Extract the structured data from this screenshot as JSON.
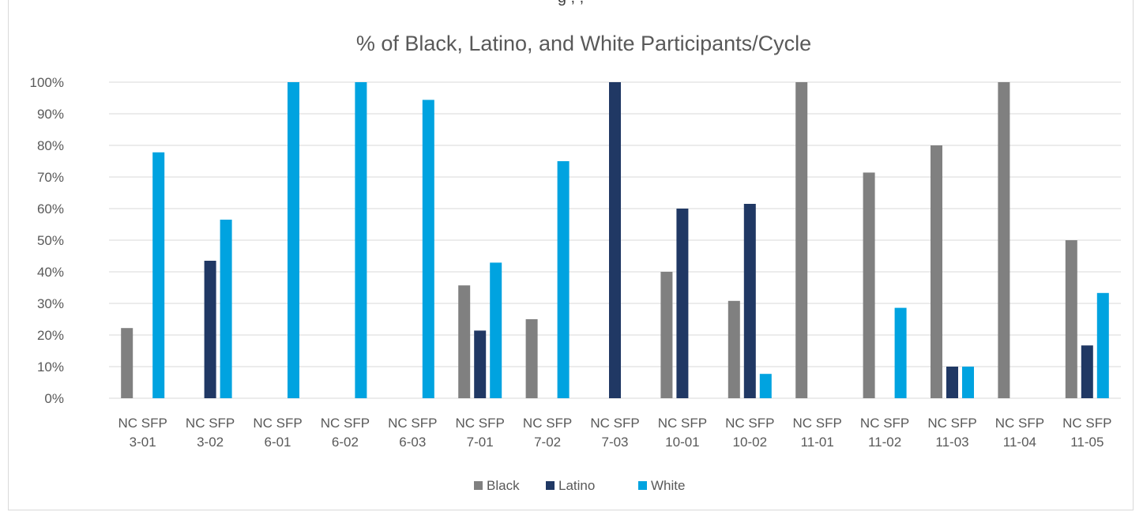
{
  "top_cropped_text": "g   ,   ,",
  "chart_data": {
    "type": "bar",
    "title": "% of Black, Latino, and White Participants/Cycle",
    "xlabel": "",
    "ylabel": "",
    "ylim": [
      0,
      100
    ],
    "y_ticks": [
      "0%",
      "10%",
      "20%",
      "30%",
      "40%",
      "50%",
      "60%",
      "70%",
      "80%",
      "90%",
      "100%"
    ],
    "categories": [
      [
        "NC SFP",
        "3-01"
      ],
      [
        "NC SFP",
        "3-02"
      ],
      [
        "NC SFP",
        "6-01"
      ],
      [
        "NC SFP",
        "6-02"
      ],
      [
        "NC SFP",
        "6-03"
      ],
      [
        "NC SFP",
        "7-01"
      ],
      [
        "NC SFP",
        "7-02"
      ],
      [
        "NC SFP",
        "7-03"
      ],
      [
        "NC SFP",
        "10-01"
      ],
      [
        "NC SFP",
        "10-02"
      ],
      [
        "NC SFP",
        "11-01"
      ],
      [
        "NC SFP",
        "11-02"
      ],
      [
        "NC SFP",
        "11-03"
      ],
      [
        "NC SFP",
        "11-04"
      ],
      [
        "NC SFP",
        "11-05"
      ]
    ],
    "series": [
      {
        "name": "Black",
        "color": "#808080",
        "values": [
          22.2,
          0,
          0,
          0,
          0,
          35.7,
          25,
          0,
          40,
          30.8,
          100,
          71.4,
          80,
          100,
          50
        ]
      },
      {
        "name": "Latino",
        "color": "#203864",
        "values": [
          0,
          43.5,
          0,
          0,
          0,
          21.4,
          0,
          100,
          60,
          61.5,
          0,
          0,
          10,
          0,
          16.7
        ]
      },
      {
        "name": "White",
        "color": "#00a3e0",
        "values": [
          77.8,
          56.5,
          100,
          100,
          94.4,
          42.9,
          75,
          0,
          0,
          7.7,
          0,
          28.6,
          10,
          0,
          33.3
        ]
      }
    ],
    "gridlines": true,
    "legend_position": "bottom"
  }
}
